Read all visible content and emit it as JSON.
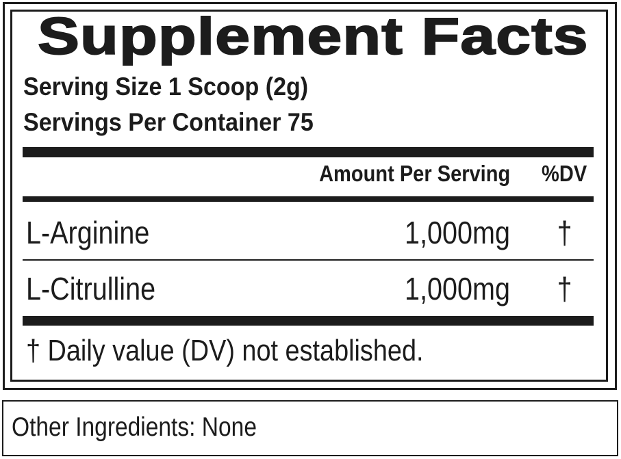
{
  "title": "Supplement Facts",
  "serving_size": "Serving Size 1 Scoop (2g)",
  "servings_per_container": "Servings Per Container 75",
  "header": {
    "amount": "Amount Per Serving",
    "dv": "%DV"
  },
  "rows": [
    {
      "name": "L-Arginine",
      "amount": "1,000mg",
      "dv": "†"
    },
    {
      "name": "L-Citrulline",
      "amount": "1,000mg",
      "dv": "†"
    }
  ],
  "footnote": "† Daily value (DV) not established.",
  "other_ingredients": "Other Ingredients: None"
}
